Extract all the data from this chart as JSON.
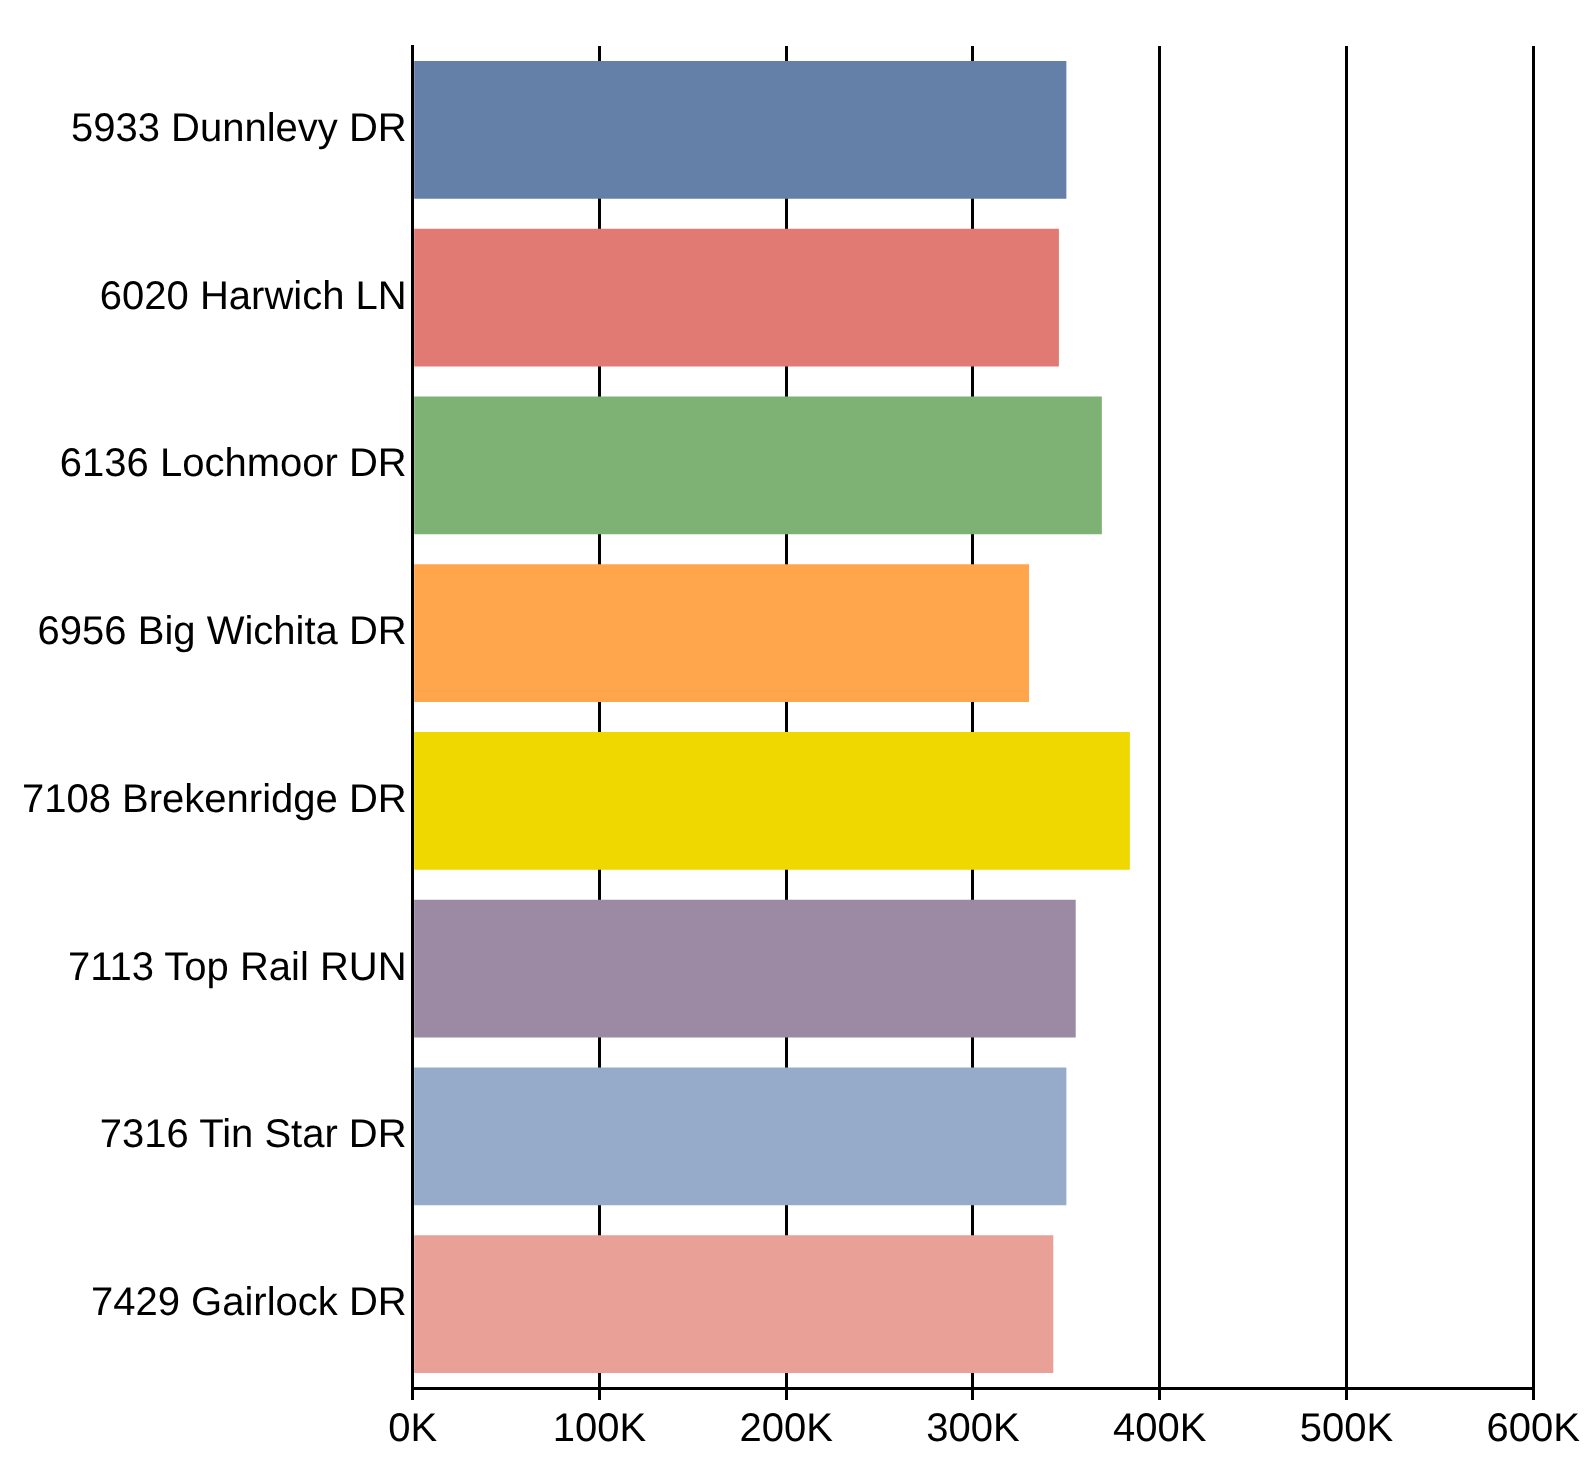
{
  "chart_data": {
    "type": "bar",
    "orientation": "horizontal",
    "categories": [
      "5933 Dunnlevy DR",
      "6020 Harwich LN",
      "6136 Lochmoor DR",
      "6956 Big Wichita DR",
      "7108 Brekenridge DR",
      "7113 Top Rail RUN",
      "7316 Tin Star DR",
      "7429 Gairlock DR"
    ],
    "values": [
      350000,
      346000,
      369000,
      330000,
      384000,
      355000,
      350000,
      343000
    ],
    "colors": [
      "#6480a8",
      "#e07a72",
      "#7db274",
      "#ffa64d",
      "#eed800",
      "#9c8aa5",
      "#95abc9",
      "#e8a097"
    ],
    "xlim": [
      0,
      600000
    ],
    "xticks": [
      {
        "value": 0,
        "label": "0K"
      },
      {
        "value": 100000,
        "label": "100K"
      },
      {
        "value": 200000,
        "label": "200K"
      },
      {
        "value": 300000,
        "label": "300K"
      },
      {
        "value": 400000,
        "label": "400K"
      },
      {
        "value": 500000,
        "label": "500K"
      },
      {
        "value": 600000,
        "label": "600K"
      }
    ],
    "grid": "x",
    "legend": false
  }
}
